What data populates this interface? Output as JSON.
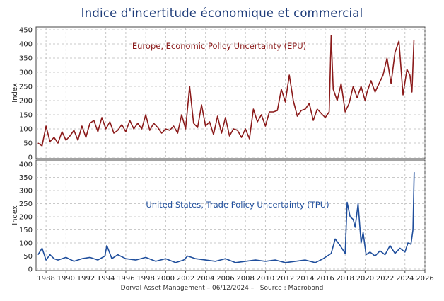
{
  "chart_data": [
    {
      "type": "line",
      "title": "Indice d'incertitude économique et commercial",
      "annotation": "Europe, Economic Policy Uncertainty (EPU)",
      "ylabel": "Index",
      "ylim": [
        0,
        450
      ],
      "yticks": [
        "0",
        "50",
        "100",
        "150",
        "200",
        "250",
        "300",
        "350",
        "400",
        "450"
      ],
      "grid": true,
      "color": "#8b1a1a",
      "series": [
        {
          "name": "Europe, Economic Policy Uncertainty (EPU)",
          "x": [
            1987.2,
            1987.6,
            1988.0,
            1988.4,
            1988.8,
            1989.2,
            1989.6,
            1990.0,
            1990.4,
            1990.8,
            1991.2,
            1991.6,
            1992.0,
            1992.4,
            1992.8,
            1993.2,
            1993.6,
            1994.0,
            1994.4,
            1994.8,
            1995.2,
            1995.6,
            1996.0,
            1996.4,
            1996.8,
            1997.2,
            1997.6,
            1998.0,
            1998.4,
            1998.8,
            1999.2,
            1999.6,
            2000.0,
            2000.4,
            2000.8,
            2001.2,
            2001.6,
            2002.0,
            2002.4,
            2002.8,
            2003.2,
            2003.6,
            2004.0,
            2004.4,
            2004.8,
            2005.2,
            2005.6,
            2006.0,
            2006.4,
            2006.8,
            2007.2,
            2007.6,
            2008.0,
            2008.4,
            2008.8,
            2009.2,
            2009.6,
            2010.0,
            2010.4,
            2010.8,
            2011.2,
            2011.6,
            2012.0,
            2012.4,
            2012.8,
            2013.2,
            2013.6,
            2014.0,
            2014.4,
            2014.8,
            2015.2,
            2015.6,
            2016.0,
            2016.4,
            2016.6,
            2016.8,
            2017.2,
            2017.6,
            2018.0,
            2018.4,
            2018.8,
            2019.2,
            2019.6,
            2020.0,
            2020.2,
            2020.6,
            2021.0,
            2021.4,
            2021.8,
            2022.2,
            2022.6,
            2023.0,
            2023.4,
            2023.8,
            2024.2,
            2024.5,
            2024.7,
            2024.9
          ],
          "values": [
            50,
            40,
            110,
            55,
            70,
            50,
            90,
            60,
            75,
            95,
            60,
            110,
            70,
            120,
            130,
            90,
            140,
            100,
            125,
            85,
            95,
            115,
            90,
            130,
            100,
            120,
            100,
            150,
            95,
            120,
            105,
            85,
            100,
            95,
            110,
            85,
            150,
            100,
            250,
            120,
            105,
            185,
            110,
            125,
            80,
            145,
            85,
            140,
            75,
            100,
            95,
            70,
            100,
            65,
            170,
            125,
            150,
            110,
            160,
            160,
            165,
            240,
            195,
            290,
            200,
            145,
            165,
            170,
            190,
            130,
            170,
            155,
            140,
            160,
            430,
            240,
            200,
            260,
            160,
            190,
            250,
            210,
            250,
            200,
            230,
            270,
            230,
            260,
            290,
            350,
            260,
            370,
            410,
            220,
            310,
            290,
            230,
            415
          ]
        }
      ]
    },
    {
      "type": "line",
      "annotation": "United States, Trade Policy Uncertainty (TPU)",
      "ylabel": "Index",
      "ylim": [
        0,
        400
      ],
      "yticks": [
        "0",
        "50",
        "100",
        "150",
        "200",
        "250",
        "300",
        "350",
        "400"
      ],
      "xlim": [
        1987,
        2026
      ],
      "xticks": [
        "1988",
        "1990",
        "1992",
        "1994",
        "1996",
        "1998",
        "2000",
        "2002",
        "2004",
        "2006",
        "2008",
        "2010",
        "2012",
        "2014",
        "2016",
        "2018",
        "2020",
        "2022",
        "2024",
        "2026"
      ],
      "grid": true,
      "color": "#1f4e9c",
      "series": [
        {
          "name": "United States, Trade Policy Uncertainty (TPU)",
          "x": [
            1987.2,
            1987.6,
            1988.0,
            1988.4,
            1988.8,
            1989.2,
            1990.0,
            1990.8,
            1991.6,
            1992.4,
            1993.2,
            1993.9,
            1994.1,
            1994.6,
            1995.2,
            1996.0,
            1997.0,
            1998.0,
            1999.0,
            2000.0,
            2001.0,
            2001.8,
            2002.2,
            2003.0,
            2004.0,
            2005.0,
            2006.0,
            2007.0,
            2008.0,
            2009.0,
            2010.0,
            2011.0,
            2012.0,
            2013.0,
            2014.0,
            2015.0,
            2015.8,
            2016.2,
            2016.6,
            2017.0,
            2017.5,
            2018.0,
            2018.2,
            2018.5,
            2018.8,
            2019.0,
            2019.3,
            2019.6,
            2019.8,
            2020.1,
            2020.5,
            2021.0,
            2021.5,
            2022.0,
            2022.5,
            2023.0,
            2023.5,
            2024.0,
            2024.3,
            2024.6,
            2024.8,
            2024.92
          ],
          "values": [
            55,
            80,
            35,
            55,
            40,
            35,
            45,
            30,
            40,
            45,
            35,
            50,
            90,
            40,
            55,
            40,
            35,
            45,
            30,
            40,
            25,
            35,
            50,
            40,
            35,
            30,
            40,
            25,
            30,
            35,
            30,
            35,
            25,
            30,
            35,
            25,
            40,
            50,
            60,
            115,
            90,
            60,
            255,
            200,
            190,
            160,
            250,
            100,
            140,
            55,
            65,
            50,
            70,
            55,
            90,
            60,
            80,
            65,
            100,
            95,
            150,
            370
          ]
        }
      ]
    }
  ],
  "footer": {
    "author": "Dorval Asset Management – 06/12/2024 –",
    "source": "Source : Macrobond"
  }
}
